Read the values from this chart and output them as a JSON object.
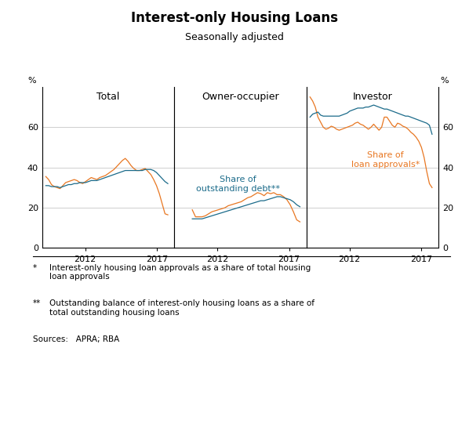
{
  "title": "Interest-only Housing Loans",
  "subtitle": "Seasonally adjusted",
  "panel_labels": [
    "Total",
    "Owner-occupier",
    "Investor"
  ],
  "ylim": [
    0,
    80
  ],
  "yticks": [
    0,
    20,
    40,
    60
  ],
  "ylabel_left": "%",
  "ylabel_right": "%",
  "color_approvals": "#E87722",
  "color_debt": "#1B6B8A",
  "annotation_approvals": "Share of\nloan approvals*",
  "annotation_debt": "Share of\noutstanding debt**",
  "footnote1_star": "*",
  "footnote1_text": "Interest-only housing loan approvals as a share of total housing\nloan approvals",
  "footnote2_star": "**",
  "footnote2_text": "Outstanding balance of interest-only housing loans as a share of\ntotal outstanding housing loans",
  "sources": "Sources:   APRA; RBA",
  "total_approvals": [
    35.5,
    34.0,
    31.5,
    30.5,
    30.0,
    29.5,
    31.0,
    32.5,
    33.0,
    33.5,
    34.0,
    33.5,
    32.5,
    32.0,
    33.0,
    34.0,
    35.0,
    34.5,
    34.0,
    35.0,
    35.5,
    36.0,
    37.0,
    38.0,
    39.0,
    40.5,
    42.0,
    43.5,
    44.5,
    43.0,
    41.0,
    39.5,
    38.5,
    38.5,
    39.0,
    39.5,
    38.0,
    36.5,
    34.0,
    31.0,
    27.0,
    22.0,
    17.0,
    16.5
  ],
  "total_debt": [
    31.0,
    31.0,
    30.5,
    30.5,
    30.5,
    30.0,
    30.5,
    31.0,
    31.5,
    31.5,
    32.0,
    32.0,
    32.5,
    32.5,
    32.5,
    33.0,
    33.5,
    33.5,
    33.5,
    34.0,
    34.5,
    35.0,
    35.5,
    36.0,
    36.5,
    37.0,
    37.5,
    38.0,
    38.5,
    38.5,
    38.5,
    38.5,
    38.5,
    38.5,
    38.5,
    39.0,
    39.0,
    39.0,
    38.5,
    37.5,
    36.0,
    34.5,
    33.0,
    32.0
  ],
  "owner_approvals": [
    19.0,
    15.5,
    15.5,
    15.5,
    16.0,
    17.0,
    18.0,
    18.5,
    19.0,
    19.5,
    20.0,
    21.0,
    21.5,
    22.0,
    22.5,
    23.0,
    24.0,
    25.0,
    25.5,
    26.5,
    27.5,
    27.0,
    26.0,
    27.5,
    27.0,
    27.5,
    26.5,
    26.5,
    25.5,
    24.0,
    21.5,
    18.0,
    14.0,
    13.0
  ],
  "owner_debt": [
    14.5,
    14.5,
    14.5,
    14.5,
    15.0,
    15.5,
    16.0,
    16.5,
    17.0,
    17.5,
    18.0,
    18.5,
    19.0,
    19.5,
    20.0,
    20.5,
    21.0,
    21.5,
    22.0,
    22.5,
    23.0,
    23.5,
    23.5,
    24.0,
    24.5,
    25.0,
    25.5,
    25.5,
    25.0,
    24.5,
    24.0,
    23.0,
    21.5,
    20.5
  ],
  "investor_approvals": [
    75.0,
    73.0,
    70.0,
    65.0,
    62.5,
    60.0,
    59.0,
    59.5,
    60.5,
    60.0,
    59.0,
    58.5,
    59.0,
    59.5,
    60.0,
    60.5,
    61.0,
    62.0,
    62.5,
    61.5,
    61.0,
    60.0,
    59.0,
    60.0,
    61.5,
    60.0,
    58.5,
    60.0,
    65.0,
    65.0,
    63.0,
    61.0,
    60.0,
    62.0,
    61.5,
    60.5,
    60.0,
    59.0,
    57.5,
    56.5,
    55.0,
    53.0,
    50.0,
    45.0,
    38.0,
    32.0,
    30.0
  ],
  "investor_debt": [
    65.0,
    66.5,
    67.0,
    67.5,
    66.0,
    65.5,
    65.5,
    65.5,
    65.5,
    65.5,
    65.5,
    65.5,
    66.0,
    66.5,
    67.0,
    68.0,
    68.5,
    69.0,
    69.5,
    69.5,
    69.5,
    70.0,
    70.0,
    70.5,
    71.0,
    70.5,
    70.0,
    69.5,
    69.0,
    69.0,
    68.5,
    68.0,
    67.5,
    67.0,
    66.5,
    66.0,
    65.5,
    65.5,
    65.0,
    64.5,
    64.0,
    63.5,
    63.0,
    62.5,
    62.0,
    61.0,
    56.5
  ],
  "total_xstart": 2009.25,
  "total_xend": 2017.75,
  "owner_xstart": 2010.25,
  "owner_xend": 2017.75,
  "investor_xstart": 2009.25,
  "investor_xend": 2017.75,
  "grid_color": "#BBBBBB",
  "xlim": [
    2009.0,
    2018.2
  ]
}
